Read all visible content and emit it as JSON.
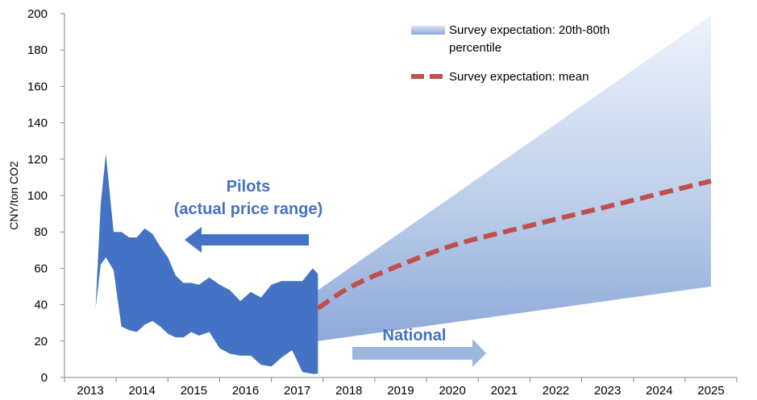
{
  "chart_data": {
    "type": "area",
    "title": "",
    "xlabel": "",
    "ylabel": "CNY/ton CO2",
    "ylim": [
      0,
      200
    ],
    "yticks": [
      0,
      20,
      40,
      60,
      80,
      100,
      120,
      140,
      160,
      180,
      200
    ],
    "xlim": [
      2012.5,
      2025.5
    ],
    "xticks": [
      "2013",
      "2014",
      "2015",
      "2016",
      "2017",
      "2018",
      "2019",
      "2020",
      "2021",
      "2022",
      "2023",
      "2024",
      "2025"
    ],
    "grid": false,
    "legend_position": "top-right",
    "series": [
      {
        "name": "",
        "kind": "range",
        "color": "#4472c4",
        "x": [
          2013.0,
          2013.1,
          2013.2,
          2013.3,
          2013.45,
          2013.6,
          2013.75,
          2013.9,
          2014.05,
          2014.2,
          2014.35,
          2014.5,
          2014.65,
          2014.8,
          2014.95,
          2015.1,
          2015.3,
          2015.5,
          2015.7,
          2015.9,
          2016.1,
          2016.3,
          2016.5,
          2016.7,
          2016.9,
          2017.1,
          2017.3,
          2017.4
        ],
        "high": [
          30,
          38,
          95,
          123,
          80,
          80,
          77,
          77,
          82,
          79,
          72,
          66,
          56,
          52,
          52,
          51,
          55,
          51,
          48,
          42,
          47,
          44,
          51,
          53,
          53,
          53,
          60,
          57
        ],
        "low": [
          30,
          38,
          62,
          66,
          59,
          28,
          26,
          25,
          29,
          31,
          28,
          24,
          22,
          22,
          25,
          23,
          25,
          16,
          13,
          12,
          12,
          7,
          6,
          11,
          15,
          3,
          2,
          2
        ]
      },
      {
        "name": "Survey expectation: 20th-80th percentile",
        "kind": "range",
        "color": "#4472c4",
        "x": [
          2017.4,
          2025.0
        ],
        "high": [
          48,
          199
        ],
        "low": [
          20,
          50
        ]
      },
      {
        "name": "Survey expectation: mean",
        "kind": "line",
        "style": "dashed",
        "color": "#c0504d",
        "x": [
          2017.4,
          2018,
          2019,
          2020,
          2021,
          2022,
          2023,
          2024,
          2025
        ],
        "y": [
          38,
          50,
          62,
          73,
          80,
          87,
          94,
          101,
          108
        ]
      }
    ],
    "annotations": [
      {
        "text": "Pilots",
        "color": "#4472c4"
      },
      {
        "text": "(actual price range)",
        "color": "#4472c4"
      },
      {
        "text": "National",
        "color": "#4472c4"
      }
    ]
  }
}
